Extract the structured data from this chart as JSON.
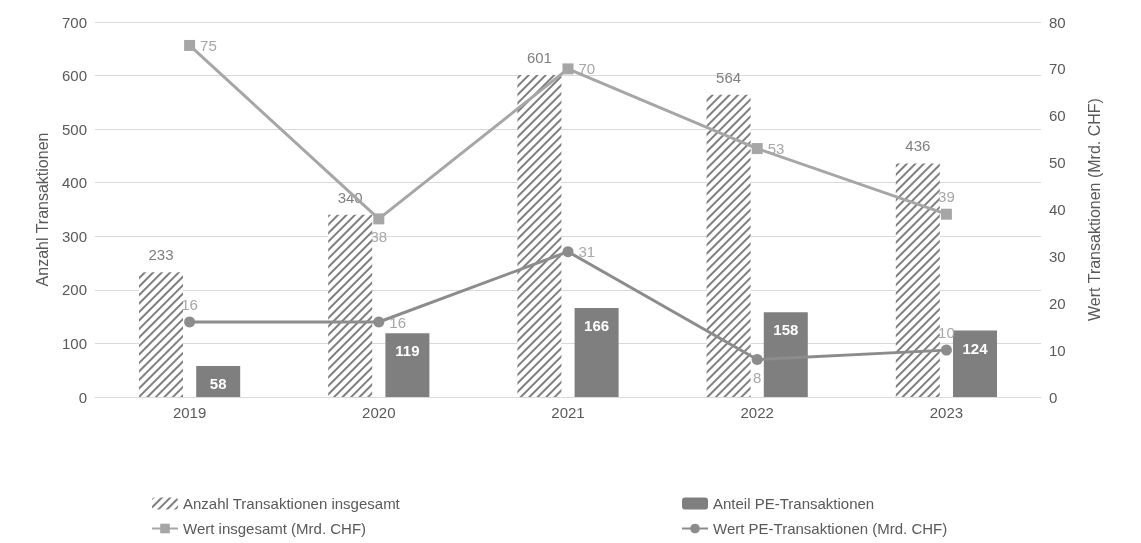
{
  "chart_data": {
    "type": "bar",
    "categories": [
      "2019",
      "2020",
      "2021",
      "2022",
      "2023"
    ],
    "ylabel": "Anzahl Transaktionen",
    "y2label": "Wert Transaktionen (Mrd. CHF)",
    "ylim": [
      0,
      700
    ],
    "yticks": [
      0,
      100,
      200,
      300,
      400,
      500,
      600,
      700
    ],
    "y2lim": [
      0,
      80
    ],
    "y2ticks": [
      0,
      10,
      20,
      30,
      40,
      50,
      60,
      70,
      80
    ],
    "grid": "y",
    "legend": "bottom",
    "data_labels": true,
    "series": [
      {
        "name": "Anzahl Transaktionen insgesamt",
        "color": "#7f7f7f",
        "values": [
          233,
          340,
          601,
          564,
          436
        ]
      },
      {
        "name": "Anteil PE-Transaktionen",
        "color": "#7f7f7f",
        "values": [
          58,
          119,
          166,
          158,
          124
        ]
      },
      {
        "name": "Wert insgesamt (Mrd. CHF)",
        "type": "line",
        "axis": "y2",
        "marker": "square",
        "color": "#a6a6a6",
        "values": [
          75,
          38,
          70,
          53,
          39
        ]
      },
      {
        "name": "Wert PE-Transaktionen (Mrd. CHF)",
        "type": "line",
        "axis": "y2",
        "marker": "circle",
        "color": "#8c8c8c",
        "values": [
          16,
          16,
          31,
          8,
          10
        ]
      }
    ]
  }
}
